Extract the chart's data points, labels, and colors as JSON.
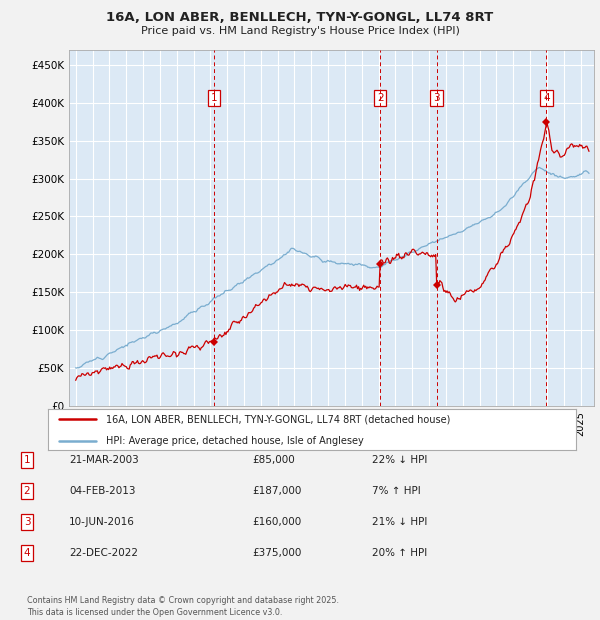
{
  "title": "16A, LON ABER, BENLLECH, TYN-Y-GONGL, LL74 8RT",
  "subtitle": "Price paid vs. HM Land Registry's House Price Index (HPI)",
  "background_color": "#f2f2f2",
  "plot_bg_color": "#dce9f5",
  "grid_color": "#ffffff",
  "sale_dates_num": [
    2003.22,
    2013.09,
    2016.44,
    2022.97
  ],
  "sale_prices": [
    85000,
    187000,
    160000,
    375000
  ],
  "sale_labels": [
    "1",
    "2",
    "3",
    "4"
  ],
  "legend_entries": [
    "16A, LON ABER, BENLLECH, TYN-Y-GONGL, LL74 8RT (detached house)",
    "HPI: Average price, detached house, Isle of Anglesey"
  ],
  "line_colors": [
    "#cc0000",
    "#7aadcf"
  ],
  "table_rows": [
    [
      "1",
      "21-MAR-2003",
      "£85,000",
      "22% ↓ HPI"
    ],
    [
      "2",
      "04-FEB-2013",
      "£187,000",
      "7% ↑ HPI"
    ],
    [
      "3",
      "10-JUN-2016",
      "£160,000",
      "21% ↓ HPI"
    ],
    [
      "4",
      "22-DEC-2022",
      "£375,000",
      "20% ↑ HPI"
    ]
  ],
  "footer": "Contains HM Land Registry data © Crown copyright and database right 2025.\nThis data is licensed under the Open Government Licence v3.0.",
  "ylim": [
    0,
    470000
  ],
  "yticks": [
    0,
    50000,
    100000,
    150000,
    200000,
    250000,
    300000,
    350000,
    400000,
    450000
  ],
  "ytick_labels": [
    "£0",
    "£50K",
    "£100K",
    "£150K",
    "£200K",
    "£250K",
    "£300K",
    "£350K",
    "£400K",
    "£450K"
  ],
  "xlim_start": 1994.6,
  "xlim_end": 2025.8
}
